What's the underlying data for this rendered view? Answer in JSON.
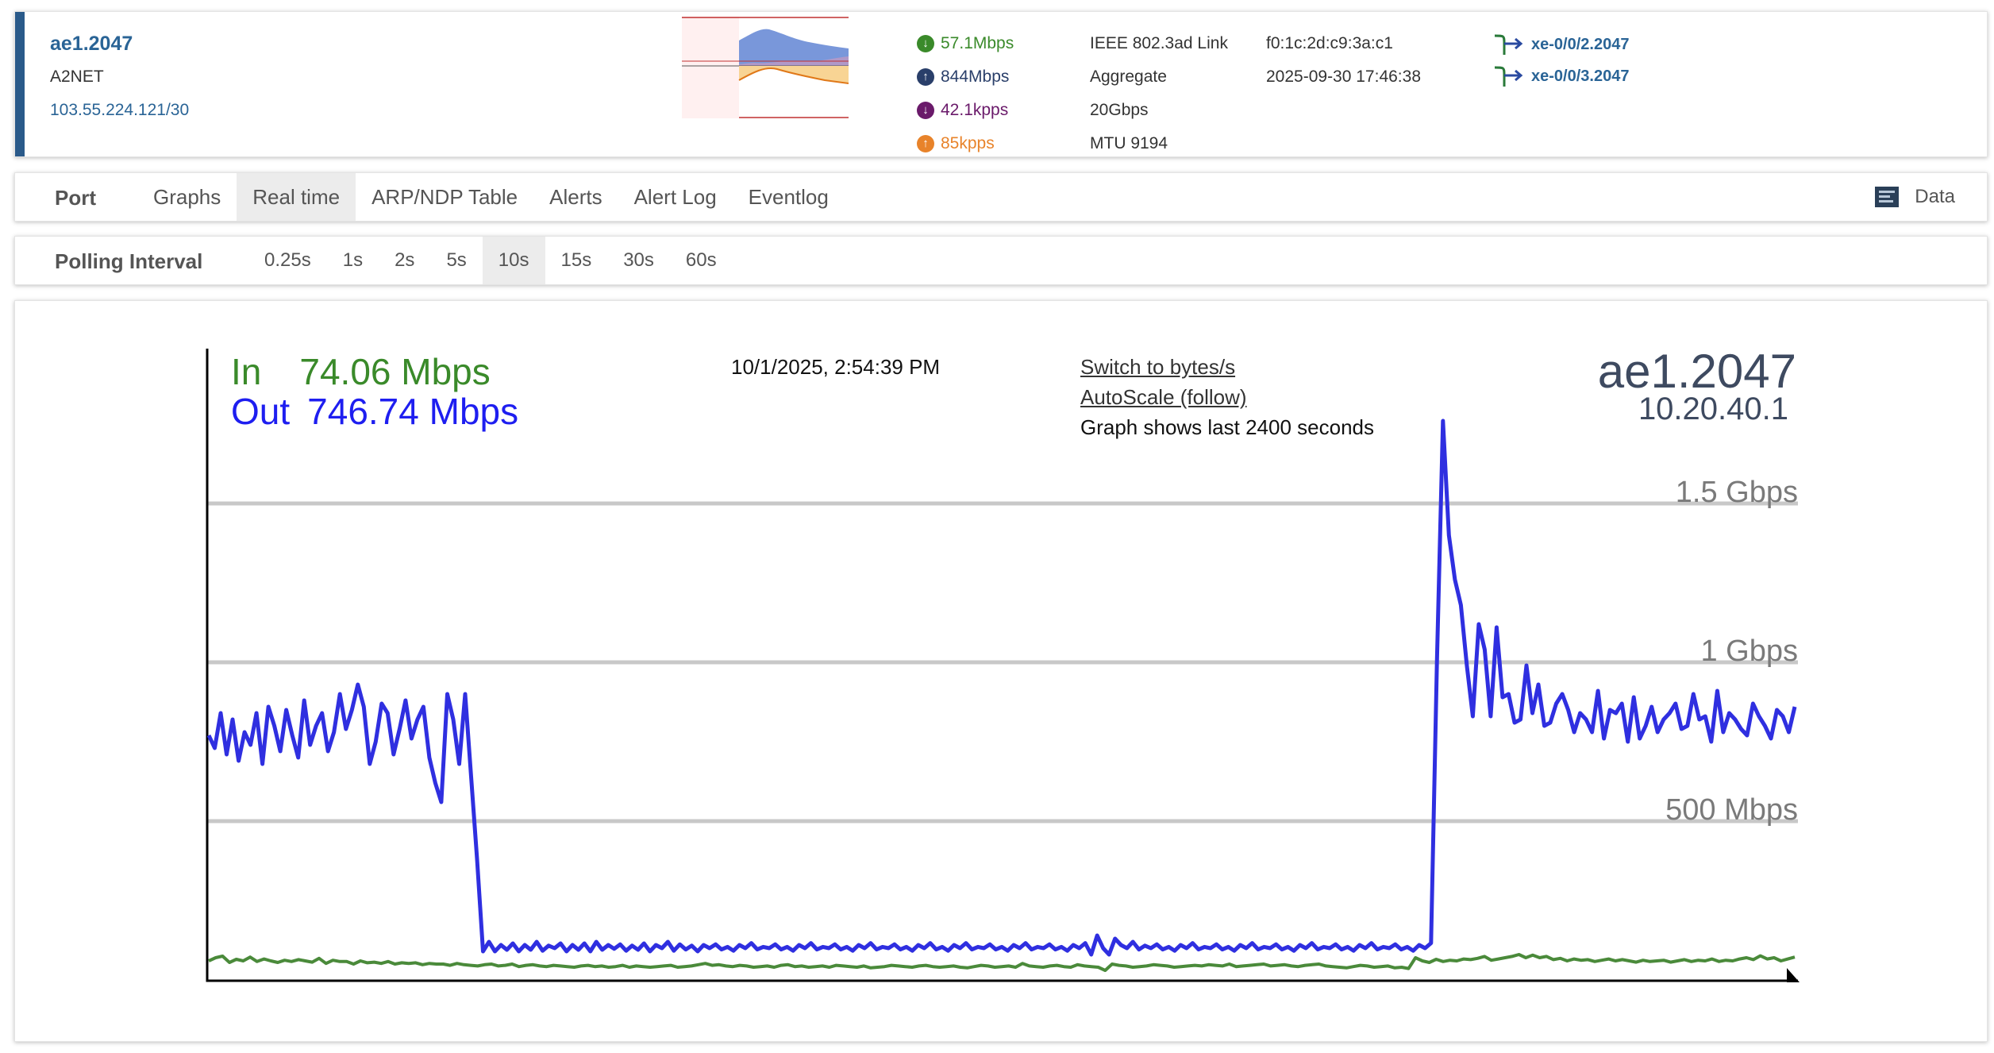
{
  "port": {
    "name": "ae1.2047",
    "description": "A2NET",
    "ip": "103.55.224.121/30",
    "stats": [
      {
        "icon": "arrow-down-circle-icon",
        "color": "#3a8a2a",
        "value": "57.1Mbps"
      },
      {
        "icon": "arrow-up-circle-icon",
        "color": "#2a3f6a",
        "value": "844Mbps"
      },
      {
        "icon": "arrow-down-circle-icon",
        "color": "#6a1a6a",
        "value": "42.1kpps"
      },
      {
        "icon": "arrow-up-circle-icon",
        "color": "#e8832a",
        "value": "85kpps"
      }
    ],
    "type": "IEEE 802.3ad Link",
    "kind": "Aggregate",
    "speed": "20Gbps",
    "mtu": "MTU 9194",
    "mac": "f0:1c:2d:c9:3a:c1",
    "last_change": "2025-09-30 17:46:38",
    "members": [
      "xe-0/0/2.2047",
      "xe-0/0/3.2047"
    ]
  },
  "nav": {
    "title": "Port",
    "tabs": [
      {
        "label": "Graphs",
        "active": false
      },
      {
        "label": "Real time",
        "active": true
      },
      {
        "label": "ARP/NDP Table",
        "active": false
      },
      {
        "label": "Alerts",
        "active": false
      },
      {
        "label": "Alert Log",
        "active": false
      },
      {
        "label": "Eventlog",
        "active": false
      }
    ],
    "data_label": "Data"
  },
  "polling": {
    "title": "Polling Interval",
    "options": [
      {
        "label": "0.25s",
        "active": false
      },
      {
        "label": "1s",
        "active": false
      },
      {
        "label": "2s",
        "active": false
      },
      {
        "label": "5s",
        "active": false
      },
      {
        "label": "10s",
        "active": true
      },
      {
        "label": "15s",
        "active": false
      },
      {
        "label": "30s",
        "active": false
      },
      {
        "label": "60s",
        "active": false
      }
    ]
  },
  "graph": {
    "in_label": "In",
    "in_value": "74.06 Mbps",
    "out_label": "Out",
    "out_value": "746.74 Mbps",
    "timestamp": "10/1/2025, 2:54:39 PM",
    "switch_link": "Switch to bytes/s",
    "autoscale_link": "AutoScale (follow)",
    "note": "Graph shows last 2400 seconds",
    "port_name": "ae1.2047",
    "host_ip": "10.20.40.1",
    "in_color": "#4a8a3a",
    "out_color": "#2f2fe0"
  },
  "chart_data": {
    "type": "line",
    "x_unit": "seconds",
    "x_range": [
      0,
      2400
    ],
    "y_unit": "Mbps",
    "ylim": [
      0,
      1750
    ],
    "grid_lines": [
      {
        "value": 500,
        "label": "500 Mbps"
      },
      {
        "value": 1000,
        "label": "1 Gbps"
      },
      {
        "value": 1500,
        "label": "1.5 Gbps"
      }
    ],
    "series": [
      {
        "name": "In",
        "color": "#4a8a3a",
        "values": [
          60,
          70,
          75,
          55,
          65,
          60,
          72,
          58,
          66,
          60,
          55,
          62,
          58,
          64,
          60,
          56,
          68,
          52,
          62,
          58,
          58,
          50,
          60,
          54,
          56,
          52,
          58,
          50,
          54,
          52,
          54,
          48,
          52,
          50,
          50,
          46,
          52,
          48,
          46,
          44,
          48,
          50,
          44,
          46,
          50,
          42,
          46,
          48,
          44,
          42,
          46,
          44,
          42,
          40,
          44,
          46,
          42,
          44,
          40,
          42,
          46,
          40,
          44,
          42,
          40,
          42,
          44,
          46,
          40,
          42,
          44,
          48,
          52,
          46,
          48,
          44,
          42,
          46,
          44,
          40,
          42,
          44,
          40,
          46,
          48,
          42,
          44,
          40,
          42,
          44,
          40,
          46,
          44,
          42,
          40,
          44,
          38,
          40,
          42,
          46,
          44,
          42,
          40,
          44,
          46,
          42,
          40,
          42,
          44,
          40,
          38,
          42,
          46,
          44,
          40,
          42,
          44,
          40,
          52,
          44,
          42,
          40,
          44,
          46,
          42,
          40,
          48,
          44,
          42,
          40,
          30,
          50,
          46,
          44,
          40,
          42,
          44,
          48,
          46,
          44,
          40,
          42,
          44,
          46,
          44,
          48,
          46,
          44,
          50,
          42,
          44,
          46,
          48,
          50,
          44,
          46,
          48,
          44,
          42,
          46,
          48,
          50,
          44,
          42,
          40,
          38,
          42,
          46,
          44,
          40,
          42,
          44,
          38,
          40,
          36,
          70,
          60,
          55,
          65,
          58,
          62,
          60,
          66,
          64,
          68,
          74,
          62,
          66,
          70,
          74,
          80,
          70,
          78,
          70,
          74,
          64,
          68,
          60,
          66,
          62,
          64,
          58,
          62,
          66,
          60,
          64,
          60,
          56,
          62,
          58,
          60,
          62,
          56,
          60,
          64,
          58,
          62,
          60,
          66,
          58,
          62,
          60,
          66,
          70,
          64,
          76,
          66,
          70,
          60,
          66,
          72
        ]
      },
      {
        "name": "Out",
        "color": "#2f2fe0",
        "values": [
          770,
          730,
          840,
          710,
          820,
          690,
          780,
          740,
          840,
          680,
          860,
          800,
          720,
          850,
          770,
          700,
          880,
          740,
          800,
          840,
          720,
          780,
          900,
          790,
          850,
          930,
          860,
          680,
          750,
          870,
          840,
          710,
          790,
          880,
          760,
          820,
          860,
          700,
          620,
          560,
          900,
          820,
          680,
          900,
          640,
          380,
          90,
          120,
          90,
          110,
          95,
          115,
          90,
          110,
          95,
          120,
          92,
          108,
          100,
          115,
          90,
          110,
          95,
          115,
          90,
          120,
          95,
          110,
          98,
          112,
          92,
          108,
          95,
          115,
          90,
          110,
          100,
          120,
          92,
          112,
          96,
          108,
          90,
          110,
          100,
          112,
          96,
          104,
          92,
          110,
          100,
          116,
          96,
          104,
          100,
          112,
          96,
          104,
          92,
          110,
          100,
          116,
          96,
          104,
          100,
          112,
          96,
          104,
          92,
          110,
          100,
          116,
          96,
          104,
          100,
          112,
          96,
          104,
          92,
          110,
          100,
          116,
          96,
          104,
          92,
          110,
          100,
          116,
          96,
          104,
          100,
          112,
          96,
          104,
          92,
          110,
          100,
          116,
          96,
          104,
          100,
          112,
          96,
          104,
          92,
          110,
          100,
          116,
          80,
          140,
          100,
          80,
          130,
          110,
          100,
          120,
          96,
          108,
          100,
          112,
          96,
          104,
          92,
          110,
          100,
          116,
          96,
          104,
          100,
          112,
          96,
          104,
          92,
          110,
          100,
          116,
          96,
          104,
          100,
          112,
          96,
          104,
          92,
          110,
          100,
          116,
          96,
          104,
          100,
          112,
          96,
          104,
          92,
          110,
          100,
          116,
          96,
          104,
          100,
          112,
          96,
          104,
          92,
          110,
          100,
          116,
          1010,
          1760,
          1400,
          1260,
          1180,
          990,
          830,
          1120,
          1040,
          830,
          1110,
          890,
          900,
          810,
          820,
          990,
          840,
          930,
          800,
          810,
          870,
          900,
          850,
          780,
          840,
          820,
          780,
          910,
          760,
          850,
          840,
          870,
          750,
          890,
          760,
          800,
          860,
          780,
          820,
          840,
          870,
          790,
          800,
          900,
          820,
          830,
          750,
          910,
          780,
          840,
          820,
          790,
          770,
          870,
          830,
          800,
          760,
          850,
          830,
          780,
          860
        ]
      }
    ]
  }
}
